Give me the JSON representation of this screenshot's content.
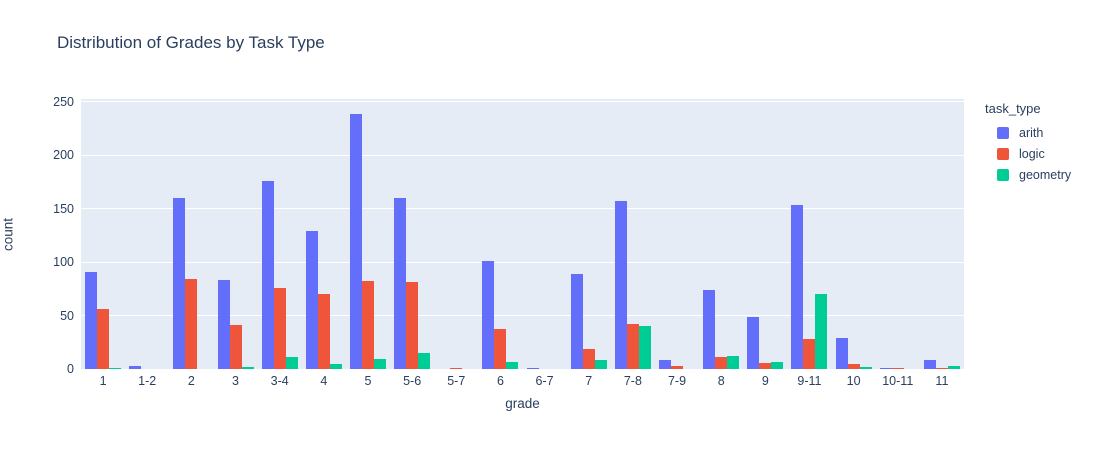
{
  "title": "Distribution of Grades by Task Type",
  "colors": {
    "background": "#ffffff",
    "plot_background": "#E5ECF6",
    "gridline": "#ffffff",
    "text": "#2a3f5f",
    "arith": "#636EFA",
    "logic": "#EF553B",
    "geometry": "#00CC96"
  },
  "legend": {
    "title": "task_type",
    "items": [
      {
        "label": "arith",
        "color": "#636EFA"
      },
      {
        "label": "logic",
        "color": "#EF553B"
      },
      {
        "label": "geometry",
        "color": "#00CC96"
      }
    ]
  },
  "chart_data": {
    "type": "bar",
    "title": "Distribution of Grades by Task Type",
    "xlabel": "grade",
    "ylabel": "count",
    "categories": [
      "1",
      "1-2",
      "2",
      "3",
      "3-4",
      "4",
      "5",
      "5-6",
      "5-7",
      "6",
      "6-7",
      "7",
      "7-8",
      "7-9",
      "8",
      "9",
      "9-11",
      "10",
      "10-11",
      "11"
    ],
    "series": [
      {
        "name": "arith",
        "color": "#636EFA",
        "values": [
          91,
          3,
          160,
          83,
          176,
          129,
          239,
          160,
          0,
          101,
          1,
          89,
          157,
          8,
          74,
          49,
          154,
          29,
          1,
          8
        ]
      },
      {
        "name": "logic",
        "color": "#EF553B",
        "values": [
          56,
          0,
          84,
          41,
          76,
          70,
          82,
          81,
          1,
          37,
          0,
          19,
          42,
          3,
          11,
          6,
          28,
          5,
          1,
          1
        ]
      },
      {
        "name": "geometry",
        "color": "#00CC96",
        "values": [
          1,
          0,
          0,
          2,
          11,
          5,
          9,
          15,
          0,
          7,
          0,
          8,
          40,
          0,
          12,
          7,
          70,
          2,
          0,
          3
        ]
      }
    ],
    "yticks": [
      0,
      50,
      100,
      150,
      200,
      250
    ],
    "ylim": [
      0,
      252.8
    ],
    "grid": true,
    "legend_position": "right",
    "bar_mode": "group"
  }
}
